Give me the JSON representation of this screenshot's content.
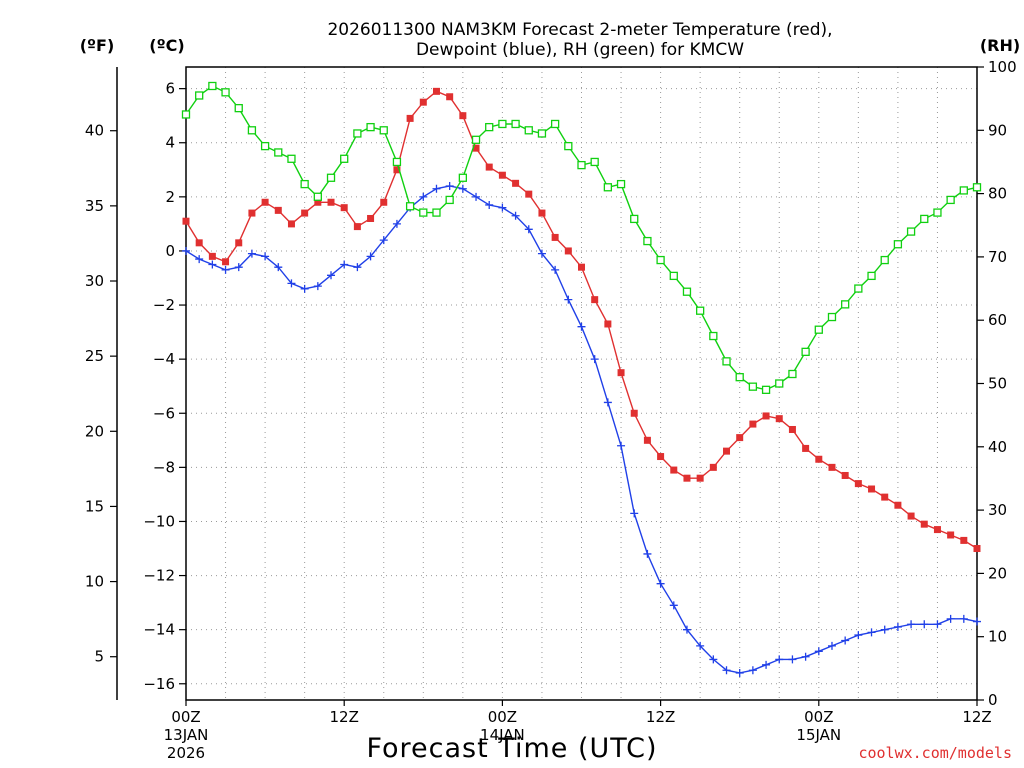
{
  "chart_data": {
    "type": "line",
    "title_line1": "2026011300 NAM3KM Forecast 2-meter Temperature (red),",
    "title_line2": "Dewpoint (blue), RH (green) for KMCW",
    "left_outer_unit": "(ºF)",
    "left_inner_unit": "(ºC)",
    "right_unit": "(RH)",
    "xlabel": "Forecast Time (UTC)",
    "credit": "coolwx.com/models",
    "x_hours_range": [
      0,
      60
    ],
    "celsius_range": [
      -16.6,
      6.8
    ],
    "rh_range": [
      0,
      100
    ],
    "celsius_ticks": [
      6,
      4,
      2,
      0,
      -2,
      -4,
      -6,
      -8,
      -10,
      -12,
      -14,
      -16
    ],
    "celsius_tick_labels": [
      "6",
      "4",
      "2",
      "0",
      "−2",
      "−4",
      "−6",
      "−8",
      "−10",
      "−12",
      "−14",
      "−16"
    ],
    "fahrenheit_ticks": [
      40,
      35,
      30,
      25,
      20,
      15,
      10,
      5
    ],
    "rh_ticks": [
      100,
      90,
      80,
      70,
      60,
      50,
      40,
      30,
      20,
      10,
      0
    ],
    "x_ticks": [
      {
        "hour": 0,
        "label": "00Z",
        "date": "13JAN",
        "year": "2026"
      },
      {
        "hour": 12,
        "label": "12Z",
        "date": "",
        "year": ""
      },
      {
        "hour": 24,
        "label": "00Z",
        "date": "14JAN",
        "year": ""
      },
      {
        "hour": 36,
        "label": "12Z",
        "date": "",
        "year": ""
      },
      {
        "hour": 48,
        "label": "00Z",
        "date": "15JAN",
        "year": ""
      },
      {
        "hour": 60,
        "label": "12Z",
        "date": "",
        "year": ""
      }
    ],
    "series": [
      {
        "name": "2-meter Temperature",
        "unit": "C",
        "color": "#e03030",
        "marker": "filled-square",
        "values": [
          [
            0,
            1.1
          ],
          [
            1,
            0.3
          ],
          [
            2,
            -0.2
          ],
          [
            3,
            -0.4
          ],
          [
            4,
            0.3
          ],
          [
            5,
            1.4
          ],
          [
            6,
            1.8
          ],
          [
            7,
            1.5
          ],
          [
            8,
            1.0
          ],
          [
            9,
            1.4
          ],
          [
            10,
            1.8
          ],
          [
            11,
            1.8
          ],
          [
            12,
            1.6
          ],
          [
            13,
            0.9
          ],
          [
            14,
            1.2
          ],
          [
            15,
            1.8
          ],
          [
            16,
            3.0
          ],
          [
            17,
            4.9
          ],
          [
            18,
            5.5
          ],
          [
            19,
            5.9
          ],
          [
            20,
            5.7
          ],
          [
            21,
            5.0
          ],
          [
            22,
            3.8
          ],
          [
            23,
            3.1
          ],
          [
            24,
            2.8
          ],
          [
            25,
            2.5
          ],
          [
            26,
            2.1
          ],
          [
            27,
            1.4
          ],
          [
            28,
            0.5
          ],
          [
            29,
            0.0
          ],
          [
            30,
            -0.6
          ],
          [
            31,
            -1.8
          ],
          [
            32,
            -2.7
          ],
          [
            33,
            -4.5
          ],
          [
            34,
            -6.0
          ],
          [
            35,
            -7.0
          ],
          [
            36,
            -7.6
          ],
          [
            37,
            -8.1
          ],
          [
            38,
            -8.4
          ],
          [
            39,
            -8.4
          ],
          [
            40,
            -8.0
          ],
          [
            41,
            -7.4
          ],
          [
            42,
            -6.9
          ],
          [
            43,
            -6.4
          ],
          [
            44,
            -6.1
          ],
          [
            45,
            -6.2
          ],
          [
            46,
            -6.6
          ],
          [
            47,
            -7.3
          ],
          [
            48,
            -7.7
          ],
          [
            49,
            -8.0
          ],
          [
            50,
            -8.3
          ],
          [
            51,
            -8.6
          ],
          [
            52,
            -8.8
          ],
          [
            53,
            -9.1
          ],
          [
            54,
            -9.4
          ],
          [
            55,
            -9.8
          ],
          [
            56,
            -10.1
          ],
          [
            57,
            -10.3
          ],
          [
            58,
            -10.5
          ],
          [
            59,
            -10.7
          ],
          [
            60,
            -11.0
          ]
        ]
      },
      {
        "name": "Dewpoint",
        "unit": "C",
        "color": "#2040e8",
        "marker": "plus",
        "values": [
          [
            0,
            0.0
          ],
          [
            1,
            -0.3
          ],
          [
            2,
            -0.5
          ],
          [
            3,
            -0.7
          ],
          [
            4,
            -0.6
          ],
          [
            5,
            -0.1
          ],
          [
            6,
            -0.2
          ],
          [
            7,
            -0.6
          ],
          [
            8,
            -1.2
          ],
          [
            9,
            -1.4
          ],
          [
            10,
            -1.3
          ],
          [
            11,
            -0.9
          ],
          [
            12,
            -0.5
          ],
          [
            13,
            -0.6
          ],
          [
            14,
            -0.2
          ],
          [
            15,
            0.4
          ],
          [
            16,
            1.0
          ],
          [
            17,
            1.6
          ],
          [
            18,
            2.0
          ],
          [
            19,
            2.3
          ],
          [
            20,
            2.4
          ],
          [
            21,
            2.3
          ],
          [
            22,
            2.0
          ],
          [
            23,
            1.7
          ],
          [
            24,
            1.6
          ],
          [
            25,
            1.3
          ],
          [
            26,
            0.8
          ],
          [
            27,
            -0.1
          ],
          [
            28,
            -0.7
          ],
          [
            29,
            -1.8
          ],
          [
            30,
            -2.8
          ],
          [
            31,
            -4.0
          ],
          [
            32,
            -5.6
          ],
          [
            33,
            -7.2
          ],
          [
            34,
            -9.7
          ],
          [
            35,
            -11.2
          ],
          [
            36,
            -12.3
          ],
          [
            37,
            -13.1
          ],
          [
            38,
            -14.0
          ],
          [
            39,
            -14.6
          ],
          [
            40,
            -15.1
          ],
          [
            41,
            -15.5
          ],
          [
            42,
            -15.6
          ],
          [
            43,
            -15.5
          ],
          [
            44,
            -15.3
          ],
          [
            45,
            -15.1
          ],
          [
            46,
            -15.1
          ],
          [
            47,
            -15.0
          ],
          [
            48,
            -14.8
          ],
          [
            49,
            -14.6
          ],
          [
            50,
            -14.4
          ],
          [
            51,
            -14.2
          ],
          [
            52,
            -14.1
          ],
          [
            53,
            -14.0
          ],
          [
            54,
            -13.9
          ],
          [
            55,
            -13.8
          ],
          [
            56,
            -13.8
          ],
          [
            57,
            -13.8
          ],
          [
            58,
            -13.6
          ],
          [
            59,
            -13.6
          ],
          [
            60,
            -13.7
          ]
        ]
      },
      {
        "name": "RH",
        "unit": "%",
        "color": "#10d010",
        "marker": "open-square",
        "values": [
          [
            0,
            92.5
          ],
          [
            1,
            95.5
          ],
          [
            2,
            97.0
          ],
          [
            3,
            96.0
          ],
          [
            4,
            93.5
          ],
          [
            5,
            90.0
          ],
          [
            6,
            87.5
          ],
          [
            7,
            86.5
          ],
          [
            8,
            85.5
          ],
          [
            9,
            81.5
          ],
          [
            10,
            79.5
          ],
          [
            11,
            82.5
          ],
          [
            12,
            85.5
          ],
          [
            13,
            89.5
          ],
          [
            14,
            90.5
          ],
          [
            15,
            90.0
          ],
          [
            16,
            85.0
          ],
          [
            17,
            78.0
          ],
          [
            18,
            77.0
          ],
          [
            19,
            77.0
          ],
          [
            20,
            79.0
          ],
          [
            21,
            82.5
          ],
          [
            22,
            88.5
          ],
          [
            23,
            90.5
          ],
          [
            24,
            91.0
          ],
          [
            25,
            91.0
          ],
          [
            26,
            90.0
          ],
          [
            27,
            89.5
          ],
          [
            28,
            91.0
          ],
          [
            29,
            87.5
          ],
          [
            30,
            84.5
          ],
          [
            31,
            85.0
          ],
          [
            32,
            81.0
          ],
          [
            33,
            81.5
          ],
          [
            34,
            76.0
          ],
          [
            35,
            72.5
          ],
          [
            36,
            69.5
          ],
          [
            37,
            67.0
          ],
          [
            38,
            64.5
          ],
          [
            39,
            61.5
          ],
          [
            40,
            57.5
          ],
          [
            41,
            53.5
          ],
          [
            42,
            51.0
          ],
          [
            43,
            49.5
          ],
          [
            44,
            49.0
          ],
          [
            45,
            50.0
          ],
          [
            46,
            51.5
          ],
          [
            47,
            55.0
          ],
          [
            48,
            58.5
          ],
          [
            49,
            60.5
          ],
          [
            50,
            62.5
          ],
          [
            51,
            65.0
          ],
          [
            52,
            67.0
          ],
          [
            53,
            69.5
          ],
          [
            54,
            72.0
          ],
          [
            55,
            74.0
          ],
          [
            56,
            76.0
          ],
          [
            57,
            77.0
          ],
          [
            58,
            79.0
          ],
          [
            59,
            80.5
          ],
          [
            60,
            81.0
          ]
        ]
      }
    ]
  }
}
